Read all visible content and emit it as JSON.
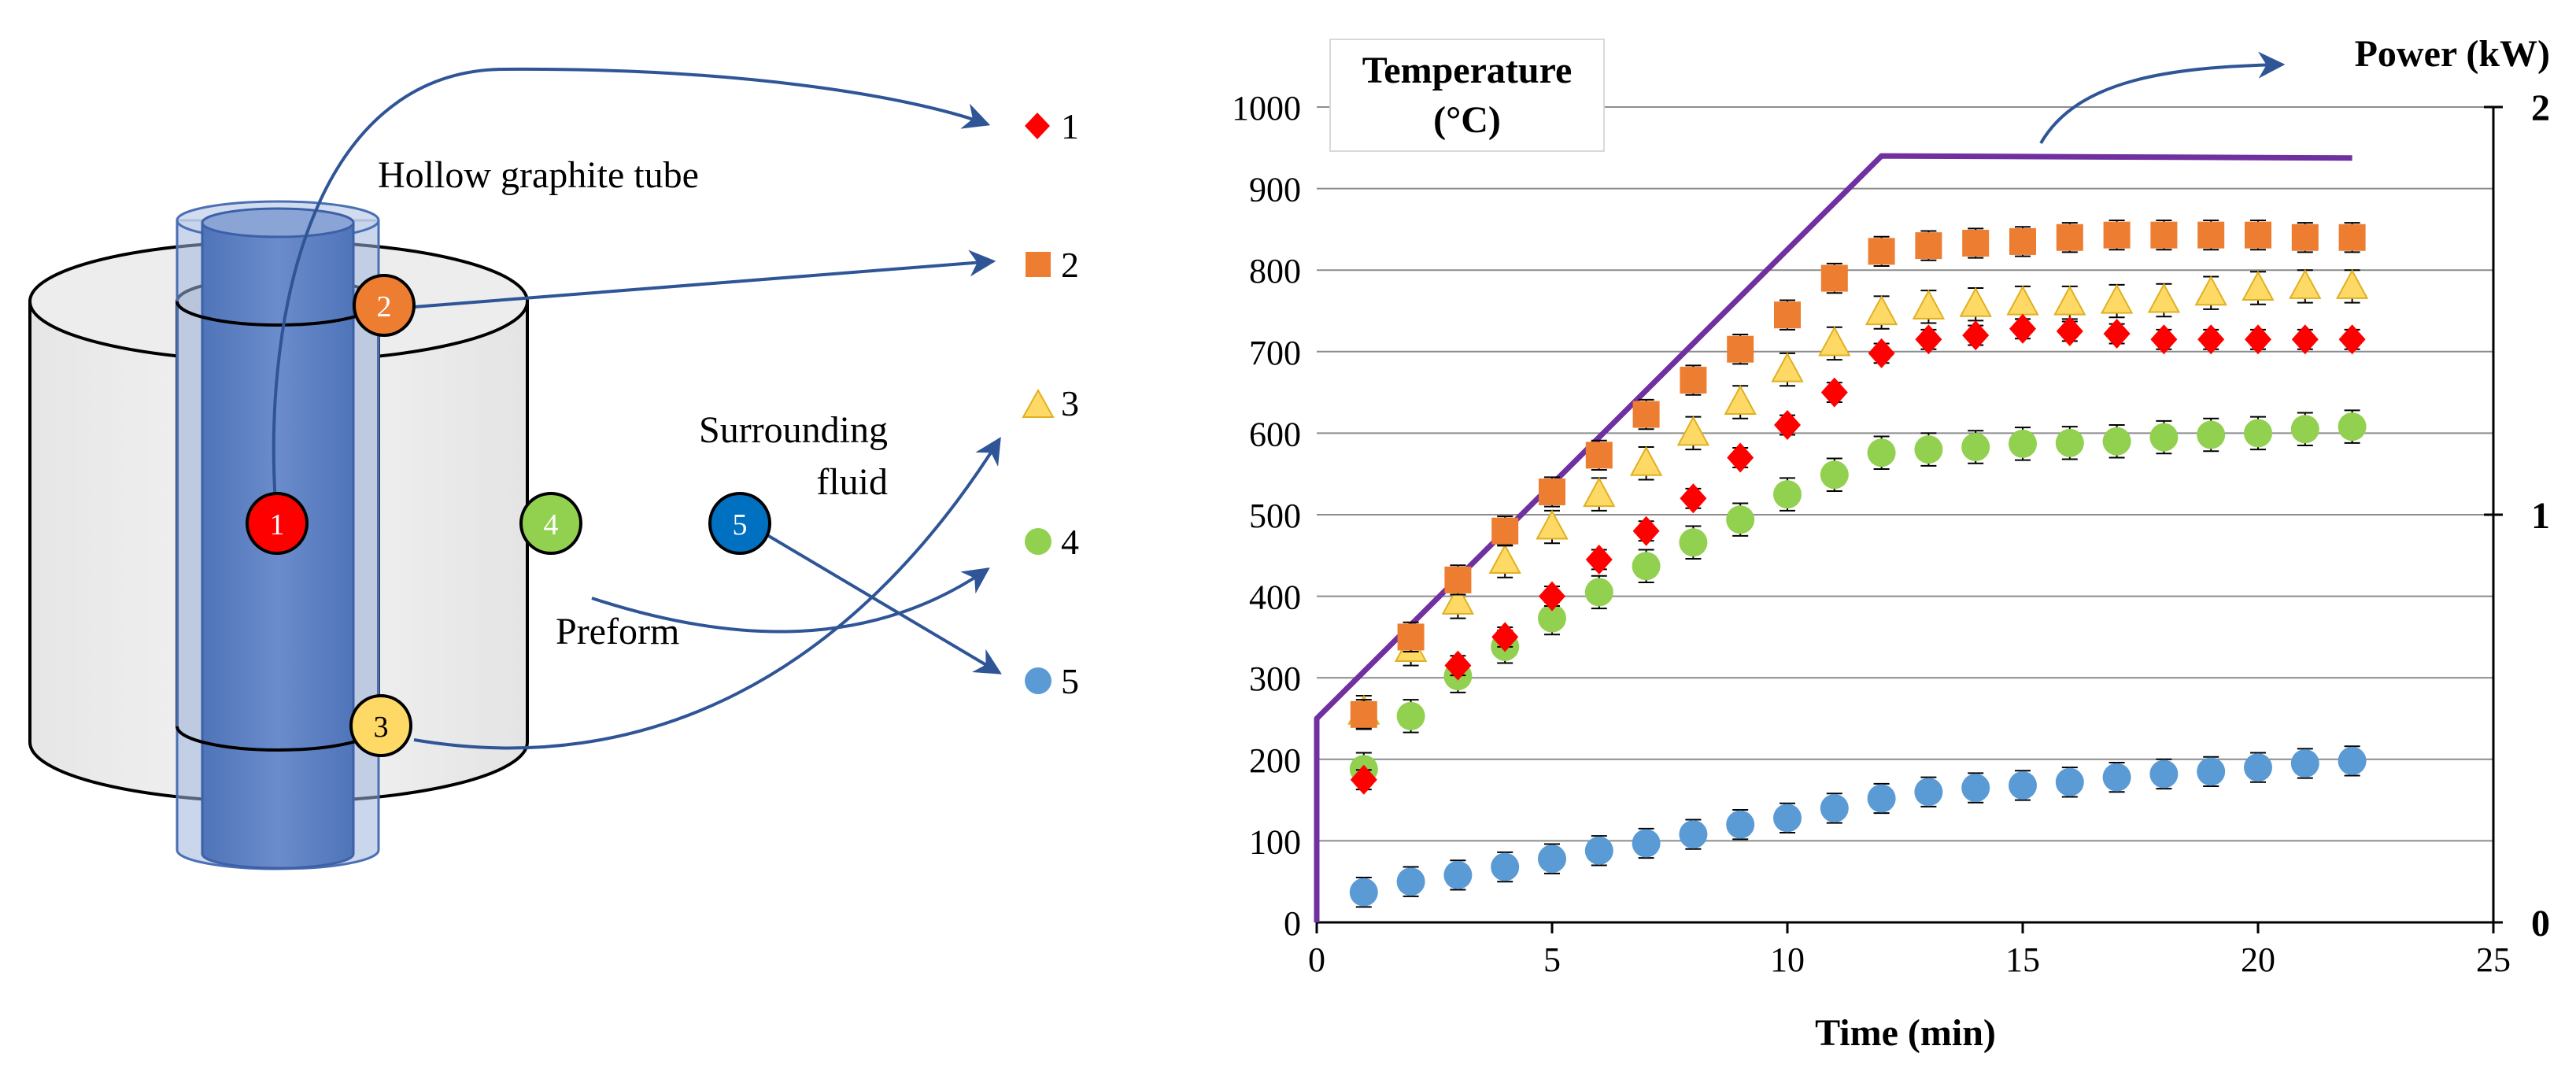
{
  "diagram": {
    "tube_label": "Hollow graphite tube",
    "fluid_label_line1": "Surrounding",
    "fluid_label_line2": "fluid",
    "preform_label": "Preform",
    "points": [
      {
        "id": "1",
        "color": "#ff0000"
      },
      {
        "id": "2",
        "color": "#ed7d31"
      },
      {
        "id": "3",
        "color": "#ffd966"
      },
      {
        "id": "4",
        "color": "#92d050"
      },
      {
        "id": "5",
        "color": "#0070c0"
      }
    ],
    "legend": [
      {
        "label": "1",
        "marker": "diamond",
        "color": "#ff0000"
      },
      {
        "label": "2",
        "marker": "square",
        "color": "#ed7d31"
      },
      {
        "label": "3",
        "marker": "triangle",
        "color": "#ffd966"
      },
      {
        "label": "4",
        "marker": "circle",
        "color": "#92d050"
      },
      {
        "label": "5",
        "marker": "circle",
        "color": "#5b9bd5"
      }
    ],
    "arrow_color": "#2f5597"
  },
  "chart_data": {
    "type": "scatter",
    "title_line1": "Temperature",
    "title_line2": "(°C)",
    "xlabel": "Time (min)",
    "y2label": "Power (kW)",
    "xlim": [
      0,
      25
    ],
    "ylim": [
      0,
      1000
    ],
    "y2lim": [
      0,
      2
    ],
    "xticks": [
      "0",
      "5",
      "10",
      "15",
      "20",
      "25"
    ],
    "yticks": [
      "0",
      "100",
      "200",
      "300",
      "400",
      "500",
      "600",
      "700",
      "800",
      "900",
      "1000"
    ],
    "y2ticks": [
      "0",
      "1",
      "2"
    ],
    "grid": true,
    "series": [
      {
        "name": "1",
        "marker": "diamond",
        "color": "#ff0000",
        "x": [
          1,
          2,
          3,
          4,
          5,
          6,
          7,
          8,
          9,
          10,
          11,
          12,
          13,
          14,
          15,
          16,
          17,
          18,
          19,
          20,
          21,
          22
        ],
        "y": [
          175,
          350,
          315,
          350,
          400,
          445,
          480,
          520,
          570,
          610,
          650,
          698,
          715,
          720,
          728,
          725,
          722,
          715,
          715,
          715,
          715,
          715
        ],
        "err": 12
      },
      {
        "name": "2",
        "marker": "square",
        "color": "#ed7d31",
        "x": [
          1,
          2,
          3,
          4,
          5,
          6,
          7,
          8,
          9,
          10,
          11,
          12,
          13,
          14,
          15,
          16,
          17,
          18,
          19,
          20,
          21,
          22
        ],
        "y": [
          255,
          350,
          420,
          480,
          528,
          573,
          623,
          665,
          703,
          745,
          790,
          823,
          830,
          833,
          835,
          840,
          843,
          843,
          843,
          843,
          840,
          840
        ],
        "err": 18
      },
      {
        "name": "3",
        "marker": "triangle",
        "color": "#ffd966",
        "x": [
          1,
          2,
          3,
          4,
          5,
          6,
          7,
          8,
          9,
          10,
          11,
          12,
          13,
          14,
          15,
          16,
          17,
          18,
          19,
          20,
          21,
          22
        ],
        "y": [
          258,
          335,
          393,
          443,
          485,
          525,
          563,
          600,
          638,
          678,
          710,
          748,
          755,
          758,
          760,
          760,
          762,
          763,
          772,
          778,
          780,
          780
        ],
        "err": 20
      },
      {
        "name": "4",
        "marker": "circle",
        "color": "#92d050",
        "x": [
          1,
          2,
          3,
          4,
          5,
          6,
          7,
          8,
          9,
          10,
          11,
          12,
          13,
          14,
          15,
          16,
          17,
          18,
          19,
          20,
          21,
          22
        ],
        "y": [
          188,
          253,
          302,
          338,
          373,
          405,
          437,
          466,
          494,
          525,
          549,
          576,
          580,
          583,
          587,
          588,
          590,
          595,
          598,
          600,
          605,
          608
        ],
        "err": 20
      },
      {
        "name": "5",
        "marker": "circle",
        "color": "#5b9bd5",
        "x": [
          1,
          2,
          3,
          4,
          5,
          6,
          7,
          8,
          9,
          10,
          11,
          12,
          13,
          14,
          15,
          16,
          17,
          18,
          19,
          20,
          21,
          22
        ],
        "y": [
          37,
          50,
          58,
          68,
          78,
          88,
          97,
          108,
          120,
          128,
          140,
          152,
          160,
          165,
          168,
          172,
          178,
          182,
          185,
          190,
          195,
          198
        ],
        "err": 18
      }
    ],
    "power_line": {
      "color": "#7030a0",
      "x": [
        0,
        0,
        12,
        22
      ],
      "y": [
        0,
        0.5,
        1.88,
        1.875
      ]
    }
  }
}
